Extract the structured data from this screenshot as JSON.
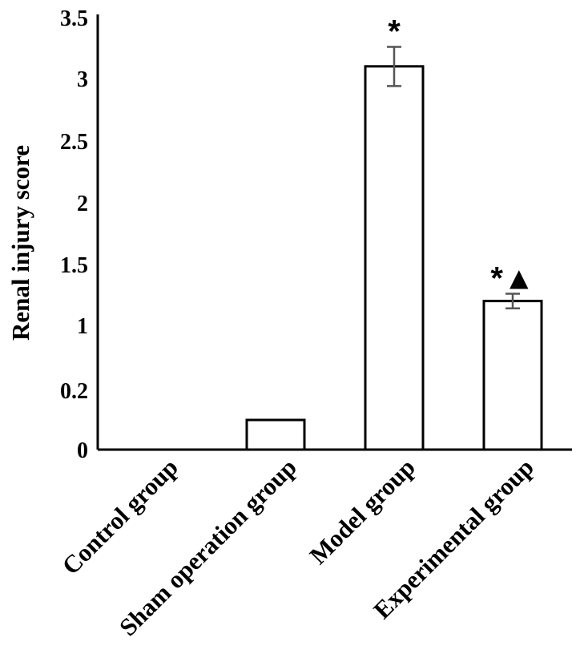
{
  "chart_data": {
    "type": "bar",
    "ylabel": "Renal injury score",
    "categories": [
      "Control group",
      "Sham operation group",
      "Model group",
      "Experimental group"
    ],
    "values": [
      0,
      0.1,
      3.1,
      1.2
    ],
    "errors": [
      0,
      0,
      0.16,
      0.06
    ],
    "significance": [
      "",
      "",
      "*",
      "*▲"
    ],
    "y_tick_labels": [
      "0",
      "0.2",
      "1",
      "1.5",
      "2",
      "2.5",
      "3",
      "3.5"
    ],
    "ylim": [
      0,
      3.5
    ],
    "grid": false,
    "legend": "none",
    "bar_fill": "#ffffff",
    "bar_stroke": "#000000",
    "error_bar_color": "#555555"
  }
}
